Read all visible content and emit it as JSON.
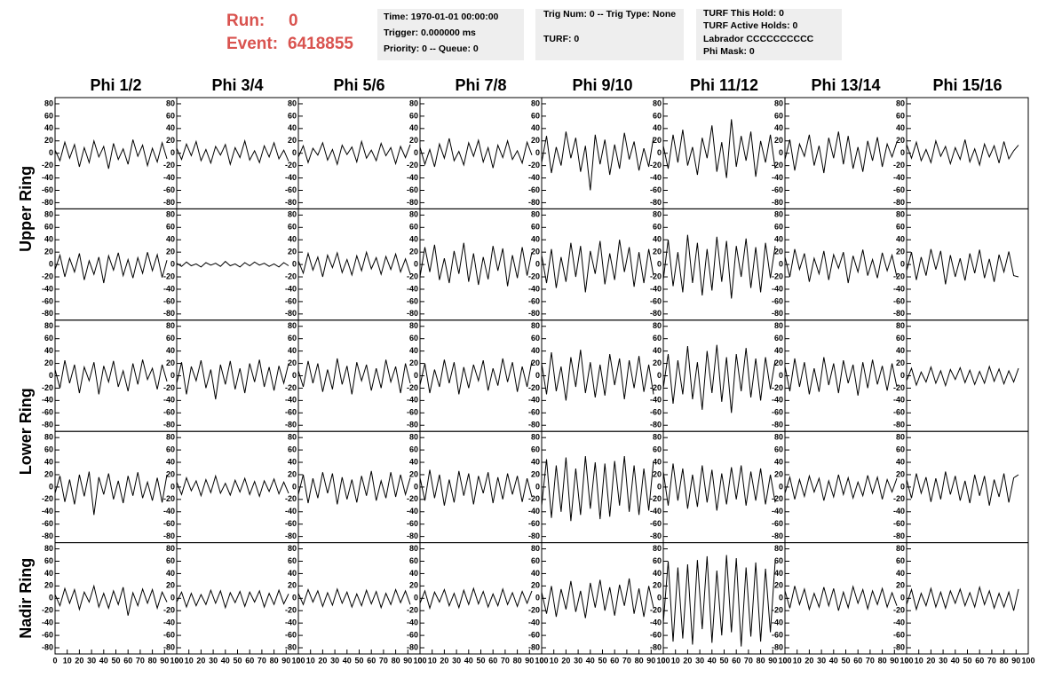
{
  "header": {
    "run_label": "Run:",
    "run": 0,
    "event_label": "Event:",
    "event": 6418855,
    "boxes": [
      [
        "Time: 1970-01-01 00:00:00",
        "Trigger: 0.000000 ms",
        "Priority: 0 -- Queue: 0"
      ],
      [
        "Trig Num: 0 -- Trig Type: None",
        "TURF: 0"
      ],
      [
        "TURF This Hold: 0",
        "TURF Active Holds: 0",
        "Labrador CCCCCCCCCC",
        "Phi Mask: 0"
      ]
    ]
  },
  "columns": [
    "Phi 1/2",
    "Phi 3/4",
    "Phi 5/6",
    "Phi 7/8",
    "Phi 9/10",
    "Phi 11/12",
    "Phi 13/14",
    "Phi 15/16"
  ],
  "rows": [
    "Upper Ring",
    "Lower Ring",
    "Nadir Ring"
  ],
  "axes": {
    "x": [
      0,
      4,
      8,
      12,
      16,
      20,
      24,
      28,
      32,
      36,
      40,
      44,
      48,
      52,
      56,
      60,
      64,
      68,
      72,
      76,
      80,
      84,
      88,
      92
    ],
    "xlim": [
      0,
      100
    ],
    "xticks": [
      0,
      10,
      20,
      30,
      40,
      50,
      60,
      70,
      80,
      90,
      100
    ],
    "ylim": [
      -90,
      90
    ],
    "yticks": [
      -80,
      -60,
      -40,
      -20,
      0,
      20,
      40,
      60,
      80
    ],
    "color": "#000000"
  },
  "chart_data": [
    {
      "type": "line",
      "values": [
        5,
        -12,
        18,
        -8,
        14,
        -22,
        9,
        -15,
        20,
        -6,
        11,
        -25,
        16,
        -10,
        7,
        -18,
        22,
        -5,
        13,
        -20,
        8,
        -14,
        17,
        -9
      ]
    },
    {
      "type": "line",
      "values": [
        8,
        -10,
        15,
        -4,
        19,
        -12,
        6,
        -16,
        11,
        -3,
        14,
        -18,
        9,
        -7,
        20,
        -11,
        4,
        -15,
        12,
        -6,
        17,
        -9,
        5,
        -13
      ]
    },
    {
      "type": "line",
      "values": [
        -6,
        12,
        -15,
        8,
        -3,
        17,
        -11,
        6,
        -18,
        13,
        -2,
        10,
        -14,
        19,
        -8,
        5,
        -12,
        16,
        -4,
        9,
        -17,
        11,
        -7,
        14
      ]
    },
    {
      "type": "line",
      "values": [
        10,
        -18,
        6,
        -22,
        15,
        -8,
        24,
        -12,
        3,
        -19,
        17,
        -5,
        21,
        -14,
        9,
        -24,
        13,
        -7,
        20,
        -10,
        4,
        -16,
        18,
        -3
      ]
    },
    {
      "type": "line",
      "values": [
        -15,
        28,
        -32,
        10,
        -20,
        35,
        -8,
        25,
        -30,
        12,
        -60,
        30,
        -18,
        22,
        -35,
        14,
        -25,
        33,
        -10,
        19,
        -28,
        8,
        -22,
        26
      ]
    },
    {
      "type": "line",
      "values": [
        12,
        -25,
        30,
        -15,
        38,
        -20,
        10,
        -35,
        25,
        -8,
        45,
        -30,
        18,
        -40,
        55,
        -22,
        28,
        -12,
        35,
        -38,
        20,
        -15,
        30,
        -25
      ]
    },
    {
      "type": "line",
      "values": [
        -10,
        22,
        -28,
        15,
        -5,
        30,
        -20,
        12,
        -32,
        25,
        -8,
        35,
        -18,
        28,
        -25,
        10,
        -30,
        20,
        -12,
        26,
        -22,
        15,
        -6,
        18
      ]
    },
    {
      "type": "line",
      "values": [
        14,
        -8,
        18,
        -12,
        6,
        -15,
        20,
        -5,
        11,
        -17,
        9,
        -10,
        22,
        -14,
        7,
        -19,
        15,
        -6,
        12,
        -16,
        19,
        -9,
        4,
        13
      ]
    },
    {
      "type": "line",
      "values": [
        -8,
        15,
        -20,
        10,
        -12,
        18,
        -25,
        6,
        -16,
        12,
        -30,
        14,
        -9,
        19,
        -18,
        8,
        -22,
        11,
        -14,
        20,
        -10,
        16,
        -21,
        7
      ]
    },
    {
      "type": "line",
      "values": [
        2,
        -3,
        4,
        -2,
        1,
        -4,
        3,
        -1,
        2,
        -3,
        5,
        -2,
        1,
        -4,
        3,
        -2,
        4,
        -1,
        2,
        -3,
        1,
        -4,
        3,
        -2
      ]
    },
    {
      "type": "line",
      "values": [
        6,
        -14,
        18,
        -9,
        12,
        -20,
        15,
        -5,
        19,
        -13,
        8,
        -17,
        14,
        -10,
        20,
        -7,
        11,
        -16,
        13,
        -8,
        17,
        -12,
        9,
        -15
      ]
    },
    {
      "type": "line",
      "values": [
        -20,
        28,
        -12,
        32,
        -25,
        10,
        -30,
        22,
        -15,
        35,
        -28,
        18,
        -33,
        12,
        -24,
        30,
        -10,
        26,
        -35,
        15,
        -22,
        28,
        -18,
        20
      ]
    },
    {
      "type": "line",
      "values": [
        15,
        -30,
        25,
        -38,
        12,
        -28,
        35,
        -20,
        30,
        -45,
        22,
        -15,
        38,
        -32,
        18,
        -25,
        40,
        -12,
        28,
        -36,
        20,
        -30,
        25,
        -18
      ]
    },
    {
      "type": "line",
      "values": [
        -25,
        40,
        -35,
        20,
        -45,
        48,
        -30,
        35,
        -50,
        25,
        -42,
        45,
        -28,
        38,
        -55,
        30,
        -20,
        42,
        -38,
        28,
        -45,
        35,
        -22,
        30
      ]
    },
    {
      "type": "line",
      "values": [
        12,
        -20,
        25,
        -8,
        18,
        -28,
        10,
        -15,
        22,
        -25,
        16,
        -6,
        20,
        -30,
        14,
        -12,
        24,
        -18,
        8,
        -22,
        19,
        -10,
        15,
        -20
      ]
    },
    {
      "type": "line",
      "values": [
        -10,
        20,
        -25,
        12,
        -18,
        25,
        -8,
        22,
        -32,
        15,
        -20,
        10,
        -26,
        18,
        -14,
        24,
        -22,
        9,
        -28,
        16,
        -12,
        21,
        -18,
        -20
      ]
    },
    {
      "type": "line",
      "values": [
        10,
        -20,
        25,
        -12,
        18,
        -28,
        14,
        -8,
        22,
        -30,
        16,
        -10,
        24,
        -18,
        8,
        -25,
        20,
        -14,
        26,
        -6,
        12,
        -22,
        18,
        -9
      ]
    },
    {
      "type": "line",
      "values": [
        -12,
        22,
        -30,
        15,
        -8,
        25,
        -20,
        10,
        -38,
        18,
        -14,
        24,
        -22,
        12,
        -28,
        20,
        -10,
        26,
        -18,
        14,
        -24,
        16,
        -12,
        20
      ]
    },
    {
      "type": "line",
      "values": [
        8,
        -18,
        24,
        -12,
        20,
        -26,
        10,
        -22,
        28,
        -14,
        16,
        -30,
        22,
        -8,
        18,
        -24,
        12,
        -20,
        26,
        -10,
        15,
        -28,
        20,
        -12
      ]
    },
    {
      "type": "line",
      "values": [
        -15,
        20,
        -28,
        10,
        -18,
        26,
        -12,
        22,
        -30,
        14,
        -20,
        18,
        -8,
        25,
        -24,
        12,
        -16,
        28,
        -10,
        22,
        -26,
        15,
        -18,
        24
      ]
    },
    {
      "type": "line",
      "values": [
        20,
        -30,
        38,
        -25,
        15,
        -40,
        30,
        -18,
        42,
        -28,
        22,
        -35,
        18,
        -32,
        35,
        -15,
        28,
        -38,
        25,
        -20,
        32,
        -26,
        18,
        -30
      ]
    },
    {
      "type": "line",
      "values": [
        -20,
        35,
        -45,
        25,
        -30,
        48,
        -38,
        22,
        -55,
        40,
        -28,
        50,
        -42,
        30,
        -60,
        35,
        -25,
        45,
        -35,
        28,
        -40,
        30,
        -22,
        25
      ]
    },
    {
      "type": "line",
      "values": [
        15,
        -25,
        28,
        -18,
        22,
        -30,
        12,
        -26,
        30,
        -15,
        20,
        -28,
        25,
        -12,
        18,
        -32,
        22,
        -20,
        26,
        -14,
        16,
        -24,
        20,
        -18
      ]
    },
    {
      "type": "line",
      "values": [
        -8,
        12,
        -15,
        6,
        -10,
        14,
        -12,
        8,
        -16,
        10,
        -6,
        13,
        -11,
        9,
        -14,
        7,
        -12,
        15,
        -9,
        11,
        -13,
        8,
        -10,
        12
      ]
    },
    {
      "type": "line",
      "values": [
        -10,
        18,
        -24,
        12,
        -28,
        20,
        -15,
        25,
        -45,
        16,
        -12,
        22,
        -20,
        10,
        -26,
        18,
        -14,
        24,
        -18,
        8,
        -22,
        15,
        -25,
        20
      ]
    },
    {
      "type": "line",
      "values": [
        8,
        -12,
        15,
        -6,
        10,
        -14,
        12,
        -9,
        18,
        -10,
        6,
        -13,
        11,
        -8,
        14,
        -12,
        9,
        -15,
        10,
        -7,
        13,
        -11,
        8,
        -10
      ]
    },
    {
      "type": "line",
      "values": [
        -12,
        20,
        -26,
        14,
        -18,
        24,
        -10,
        22,
        -28,
        16,
        -20,
        12,
        -25,
        18,
        -14,
        26,
        -22,
        10,
        -18,
        24,
        -16,
        20,
        -12,
        15
      ]
    },
    {
      "type": "line",
      "values": [
        15,
        -22,
        28,
        -18,
        20,
        -30,
        12,
        -25,
        26,
        -14,
        22,
        -28,
        18,
        -10,
        24,
        -26,
        16,
        -20,
        22,
        -12,
        18,
        -24,
        14,
        -16
      ]
    },
    {
      "type": "line",
      "values": [
        -30,
        45,
        -50,
        35,
        -40,
        48,
        -55,
        30,
        -45,
        50,
        -35,
        40,
        -52,
        38,
        -48,
        42,
        -30,
        50,
        -40,
        35,
        -45,
        30,
        -38,
        42
      ]
    },
    {
      "type": "line",
      "values": [
        25,
        -30,
        38,
        -22,
        30,
        -35,
        20,
        -32,
        35,
        -25,
        28,
        -38,
        22,
        -28,
        32,
        -20,
        35,
        -30,
        25,
        -22,
        30,
        -28,
        20,
        -25
      ]
    },
    {
      "type": "line",
      "values": [
        -10,
        16,
        -20,
        12,
        -15,
        18,
        -8,
        14,
        -22,
        10,
        -16,
        20,
        -12,
        15,
        -18,
        8,
        -14,
        19,
        -10,
        16,
        -20,
        12,
        -8,
        14
      ]
    },
    {
      "type": "line",
      "values": [
        12,
        -18,
        22,
        -10,
        16,
        -24,
        14,
        -20,
        25,
        -12,
        18,
        -22,
        10,
        -26,
        20,
        -14,
        18,
        -30,
        12,
        -16,
        22,
        -25,
        15,
        20
      ]
    },
    {
      "type": "line",
      "values": [
        6,
        -12,
        16,
        -8,
        14,
        -18,
        10,
        -6,
        20,
        -14,
        8,
        -16,
        12,
        -10,
        18,
        -28,
        9,
        -12,
        15,
        -8,
        14,
        -16,
        10,
        -6
      ]
    },
    {
      "type": "line",
      "values": [
        -6,
        10,
        -14,
        8,
        -12,
        6,
        -10,
        13,
        -8,
        12,
        -15,
        9,
        -7,
        11,
        -13,
        10,
        -6,
        12,
        -14,
        8,
        -10,
        13,
        -9,
        7
      ]
    },
    {
      "type": "line",
      "values": [
        8,
        -10,
        14,
        -6,
        12,
        -13,
        9,
        -11,
        15,
        -8,
        10,
        -14,
        7,
        -12,
        13,
        -9,
        11,
        -15,
        8,
        -10,
        14,
        -7,
        12,
        -10
      ]
    },
    {
      "type": "line",
      "values": [
        -8,
        12,
        -16,
        10,
        -6,
        14,
        -12,
        8,
        -15,
        13,
        -10,
        16,
        -9,
        11,
        -14,
        7,
        -12,
        15,
        -10,
        9,
        -13,
        11,
        -8,
        12
      ]
    },
    {
      "type": "line",
      "values": [
        10,
        -25,
        20,
        -30,
        15,
        -18,
        28,
        -22,
        12,
        -32,
        25,
        -15,
        30,
        -20,
        18,
        -28,
        22,
        -12,
        32,
        -25,
        16,
        -30,
        20,
        -15
      ]
    },
    {
      "type": "line",
      "values": [
        -40,
        60,
        -70,
        50,
        -65,
        55,
        -75,
        62,
        -50,
        68,
        -72,
        45,
        -60,
        70,
        -55,
        65,
        -78,
        50,
        -62,
        58,
        -70,
        48,
        -55,
        60
      ]
    },
    {
      "type": "line",
      "values": [
        12,
        -16,
        20,
        -10,
        15,
        -18,
        8,
        -14,
        18,
        -12,
        16,
        -20,
        10,
        -15,
        19,
        -8,
        14,
        -17,
        12,
        -10,
        16,
        -14,
        9,
        -12
      ]
    },
    {
      "type": "line",
      "values": [
        -10,
        14,
        -18,
        8,
        -12,
        16,
        -14,
        10,
        -16,
        12,
        -8,
        15,
        -12,
        9,
        -14,
        18,
        -10,
        12,
        -16,
        8,
        -14,
        10,
        -20,
        15
      ]
    }
  ]
}
